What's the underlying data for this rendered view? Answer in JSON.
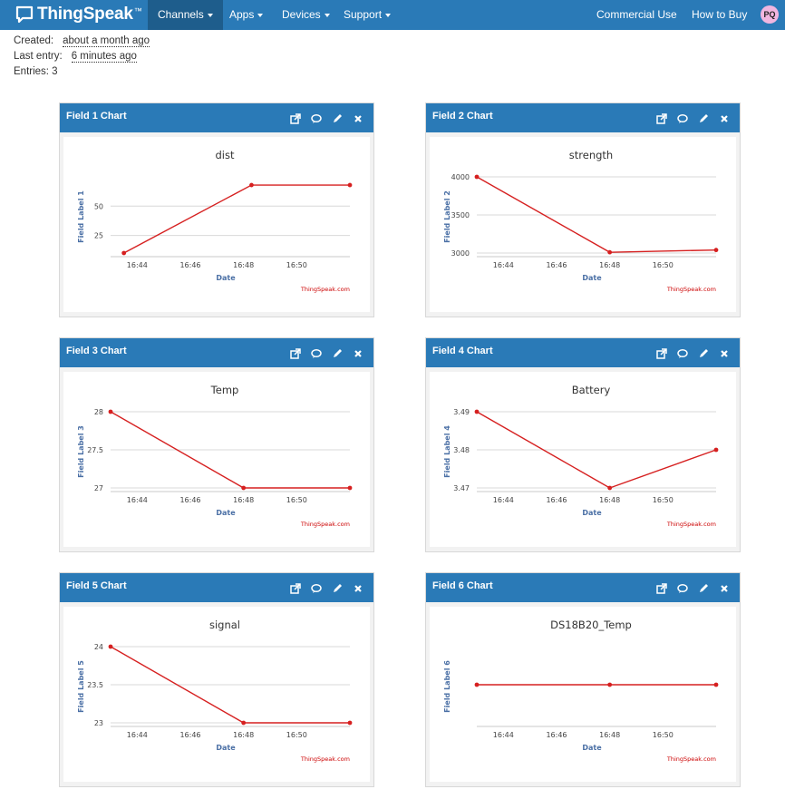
{
  "navbar": {
    "brand": "ThingSpeak",
    "brand_tm": "™",
    "items": [
      {
        "label": "Channels",
        "active": true,
        "dropdown": true
      },
      {
        "label": "Apps",
        "dropdown": true
      },
      {
        "label": "Devices",
        "dropdown": true
      },
      {
        "label": "Support",
        "dropdown": true
      }
    ],
    "right_links": [
      "Commercial Use",
      "How to Buy"
    ],
    "avatar_initials": "PQ"
  },
  "channel_info": {
    "created_label": "Created:",
    "created_value": "about a month ago",
    "last_entry_label": "Last entry:",
    "last_entry_value": "6 minutes ago",
    "entries_label": "Entries: 3"
  },
  "panel_icons": [
    "popout-icon",
    "comment-icon",
    "pencil-icon",
    "close-icon"
  ],
  "credit": "ThingSpeak.com",
  "chart_data": [
    {
      "panel_title": "Field 1 Chart",
      "type": "line",
      "title": "dist",
      "xlabel": "Date",
      "ylabel": "Field Label 1",
      "x": [
        "16:43.5",
        "16:48.3",
        "16:52"
      ],
      "x_ticks": [
        "16:44",
        "16:46",
        "16:48",
        "16:50"
      ],
      "values": [
        10,
        68,
        68
      ],
      "y_ticks": [
        25,
        50
      ],
      "ylim": [
        10,
        75
      ]
    },
    {
      "panel_title": "Field 2 Chart",
      "type": "line",
      "title": "strength",
      "xlabel": "Date",
      "ylabel": "Field Label 2",
      "x": [
        "16:43",
        "16:48",
        "16:52"
      ],
      "x_ticks": [
        "16:44",
        "16:46",
        "16:48",
        "16:50"
      ],
      "values": [
        4000,
        3010,
        3040
      ],
      "y_ticks": [
        3000,
        3500,
        4000
      ],
      "ylim": [
        3000,
        4000
      ]
    },
    {
      "panel_title": "Field 3 Chart",
      "type": "line",
      "title": "Temp",
      "xlabel": "Date",
      "ylabel": "Field Label 3",
      "x": [
        "16:43",
        "16:48",
        "16:52"
      ],
      "x_ticks": [
        "16:44",
        "16:46",
        "16:48",
        "16:50"
      ],
      "values": [
        28,
        27,
        27
      ],
      "y_ticks": [
        27,
        27.5,
        28
      ],
      "ylim": [
        27,
        28
      ]
    },
    {
      "panel_title": "Field 4 Chart",
      "type": "line",
      "title": "Battery",
      "xlabel": "Date",
      "ylabel": "Field Label 4",
      "x": [
        "16:43",
        "16:48",
        "16:52"
      ],
      "x_ticks": [
        "16:44",
        "16:46",
        "16:48",
        "16:50"
      ],
      "values": [
        3.49,
        3.47,
        3.48
      ],
      "y_ticks": [
        3.47,
        3.48,
        3.49
      ],
      "ylim": [
        3.47,
        3.49
      ]
    },
    {
      "panel_title": "Field 5 Chart",
      "type": "line",
      "title": "signal",
      "xlabel": "Date",
      "ylabel": "Field Label 5",
      "x": [
        "16:43",
        "16:48",
        "16:52"
      ],
      "x_ticks": [
        "16:44",
        "16:46",
        "16:48",
        "16:50"
      ],
      "values": [
        24,
        23,
        23
      ],
      "y_ticks": [
        23,
        23.5,
        24
      ],
      "ylim": [
        23,
        24
      ]
    },
    {
      "panel_title": "Field 6 Chart",
      "type": "line",
      "title": "DS18B20_Temp",
      "xlabel": "Date",
      "ylabel": "Field Label 6",
      "x": [
        "16:43",
        "16:48",
        "16:52"
      ],
      "x_ticks": [
        "16:44",
        "16:46",
        "16:48",
        "16:50"
      ],
      "values": [
        0,
        0,
        0
      ],
      "y_ticks": [],
      "ylim": [
        -1,
        1
      ]
    }
  ]
}
